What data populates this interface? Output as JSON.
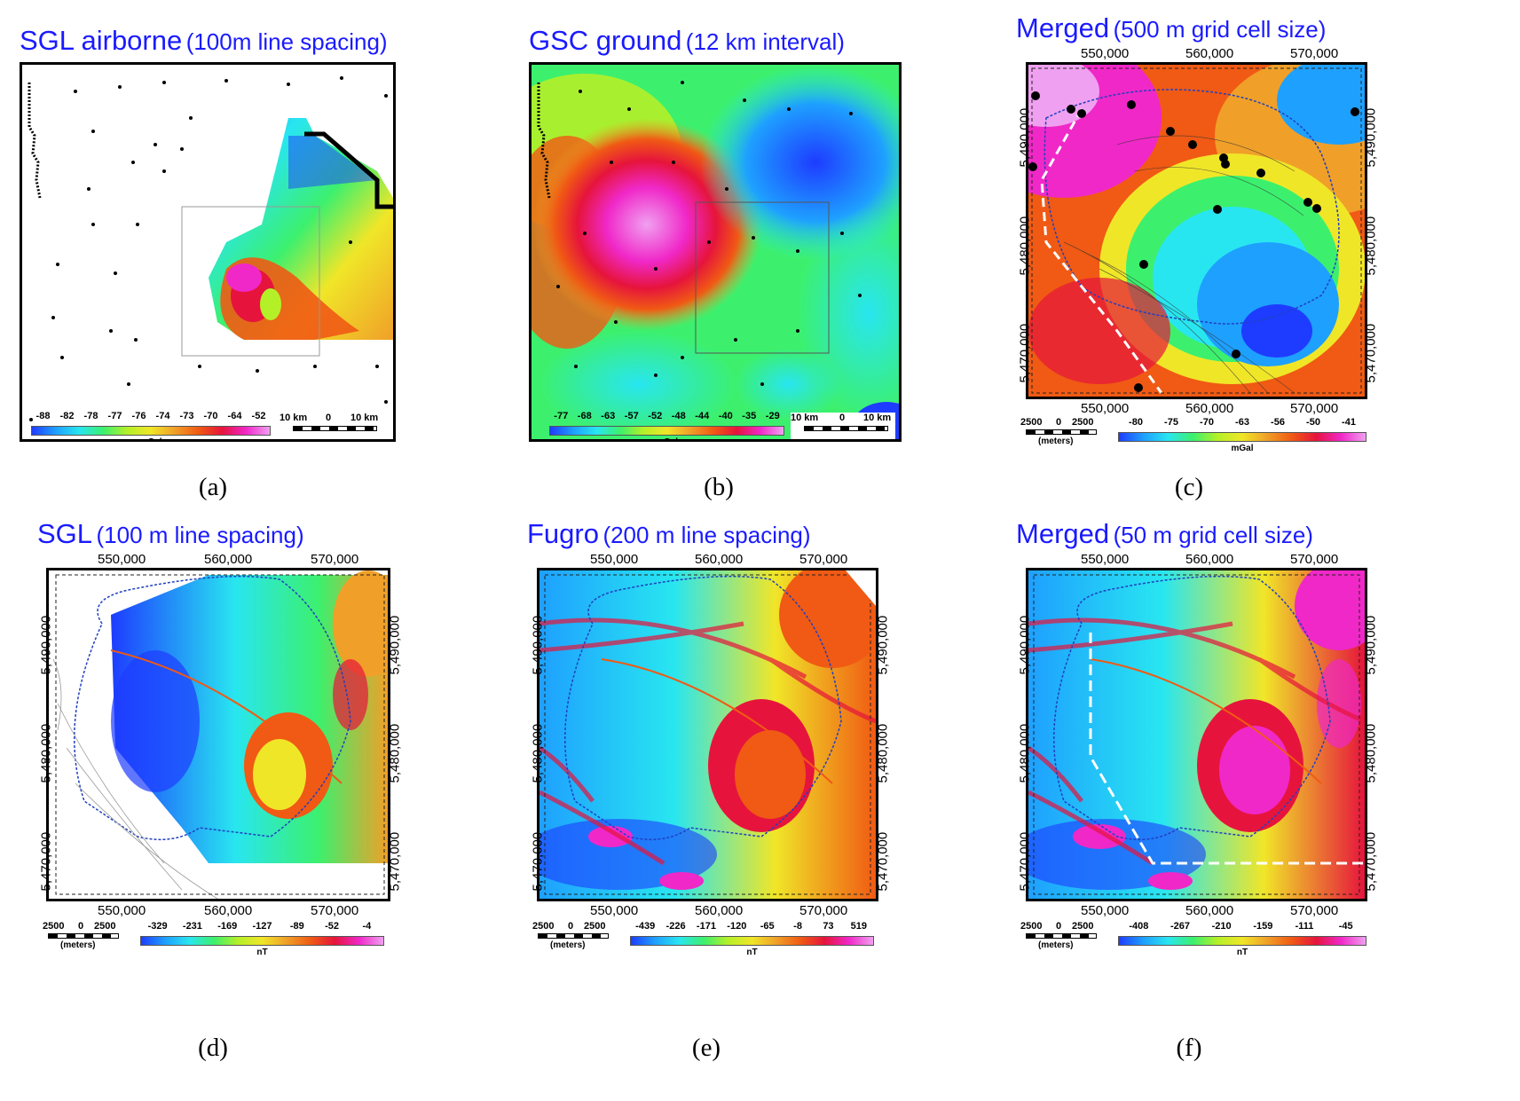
{
  "panels": [
    {
      "id": "a",
      "title_main": "SGL airborne",
      "title_sub": "(100m line spacing)",
      "caption": "(a)",
      "legend_values": [
        "-88",
        "-82",
        "-78",
        "-77",
        "-76",
        "-74",
        "-73",
        "-70",
        "-64",
        "-52"
      ],
      "legend_unit": "mGal",
      "scale": {
        "left": "10 km",
        "mid": "0",
        "right": "10 km"
      }
    },
    {
      "id": "b",
      "title_main": "GSC ground",
      "title_sub": "(12 km interval)",
      "caption": "(b)",
      "legend_values": [
        "-77",
        "-68",
        "-63",
        "-57",
        "-52",
        "-48",
        "-44",
        "-40",
        "-35",
        "-29"
      ],
      "legend_unit": "mGal",
      "scale": {
        "left": "10 km",
        "mid": "0",
        "right": "10 km"
      }
    },
    {
      "id": "c",
      "title_main": "Merged",
      "title_sub": "(500 m grid cell size)",
      "caption": "(c)",
      "legend_values": [
        "-80",
        "-75",
        "-70",
        "-63",
        "-56",
        "-50",
        "-41"
      ],
      "legend_unit": "mGal",
      "scale": {
        "left": "2500",
        "mid": "0",
        "right": "2500",
        "unit": "(meters)"
      }
    },
    {
      "id": "d",
      "title_main": "SGL",
      "title_sub": "(100 m line spacing)",
      "caption": "(d)",
      "legend_values": [
        "-329",
        "-231",
        "-169",
        "-127",
        "-89",
        "-52",
        "-4"
      ],
      "legend_unit": "nT",
      "scale": {
        "left": "2500",
        "mid": "0",
        "right": "2500",
        "unit": "(meters)"
      }
    },
    {
      "id": "e",
      "title_main": "Fugro",
      "title_sub": "(200 m line spacing)",
      "caption": "(e)",
      "legend_values": [
        "-439",
        "-226",
        "-171",
        "-120",
        "-65",
        "-8",
        "73",
        "519"
      ],
      "legend_unit": "nT",
      "scale": {
        "left": "2500",
        "mid": "0",
        "right": "2500",
        "unit": "(meters)"
      }
    },
    {
      "id": "f",
      "title_main": "Merged",
      "title_sub": "(50 m grid cell size)",
      "caption": "(f)",
      "legend_values": [
        "-408",
        "-267",
        "-210",
        "-159",
        "-111",
        "-45"
      ],
      "legend_unit": "nT",
      "scale": {
        "left": "2500",
        "mid": "0",
        "right": "2500",
        "unit": "(meters)"
      }
    }
  ],
  "x_ticks": [
    "550,000",
    "560,000",
    "570,000"
  ],
  "y_ticks": [
    "5,490,000",
    "5,480,000",
    "5,470,000"
  ],
  "colors": {
    "title": "#1a1aff",
    "ramp": [
      "#1e3cff",
      "#1ea0ff",
      "#28e6f0",
      "#3cf06e",
      "#b4f028",
      "#f0e628",
      "#f0a028",
      "#f05a14",
      "#e6143c",
      "#f028c8",
      "#f0a0f0"
    ]
  }
}
